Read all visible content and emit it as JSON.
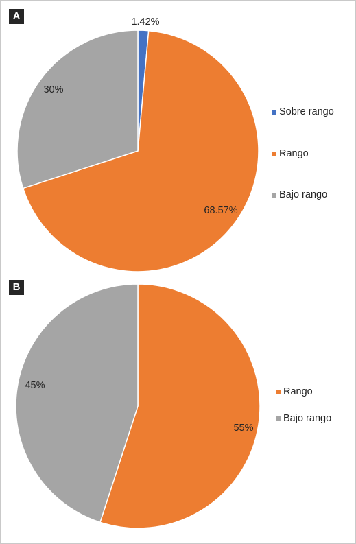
{
  "chart_data": [
    {
      "type": "pie",
      "panel_label": "A",
      "categories": [
        "Sobre rango",
        "Rango",
        "Bajo rango"
      ],
      "values": [
        1.42,
        68.57,
        30
      ],
      "data_labels": [
        "1.42%",
        "68.57%",
        "30%"
      ],
      "colors": [
        "#4472c4",
        "#ed7d31",
        "#a5a5a5"
      ],
      "legend": "right"
    },
    {
      "type": "pie",
      "panel_label": "B",
      "categories": [
        "Rango",
        "Bajo rango"
      ],
      "values": [
        55,
        45
      ],
      "data_labels": [
        "55%",
        "45%"
      ],
      "colors": [
        "#ed7d31",
        "#a5a5a5"
      ],
      "legend": "right"
    }
  ]
}
